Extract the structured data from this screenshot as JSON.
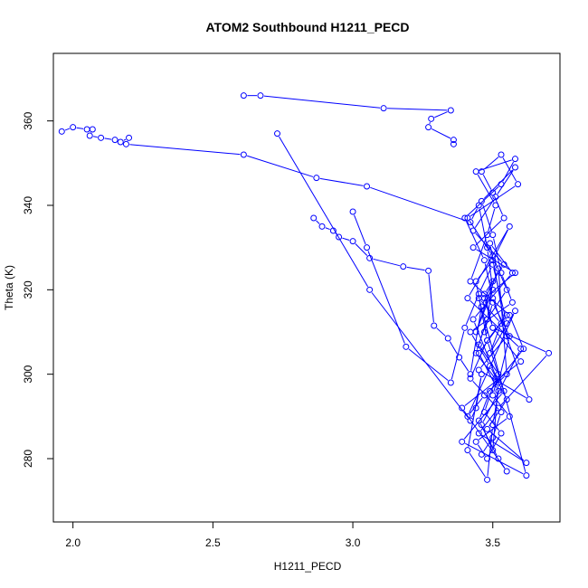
{
  "chart_data": {
    "type": "line",
    "title": "ATOM2 Southbound H1211_PECD",
    "xlabel": "H1211_PECD",
    "ylabel": "Theta (K)",
    "xlim": [
      1.93,
      3.74
    ],
    "ylim": [
      265,
      376
    ],
    "xticks": [
      2.0,
      2.5,
      3.0,
      3.5
    ],
    "xtick_labels": [
      "2.0",
      "2.5",
      "3.0",
      "3.5"
    ],
    "yticks": [
      280,
      300,
      320,
      340,
      360
    ],
    "ytick_labels": [
      "280",
      "300",
      "320",
      "340",
      "360"
    ],
    "grid": false,
    "legend": "none",
    "color": "#0000ff",
    "marker": "open-circle",
    "series": [
      {
        "x": [
          1.96,
          2.0,
          2.05,
          2.07,
          2.06,
          2.1,
          2.15,
          2.17,
          2.2,
          2.19,
          2.61,
          2.87,
          3.05,
          3.42,
          3.45,
          3.48,
          3.5,
          3.44,
          3.52,
          3.55,
          3.47,
          3.41,
          3.58,
          3.49,
          3.53,
          3.45,
          3.62,
          3.39,
          3.54,
          3.48,
          3.44,
          3.5,
          3.56,
          3.41,
          3.6,
          3.46,
          3.5,
          3.52,
          3.43,
          3.57,
          3.49,
          3.55,
          3.45,
          3.63,
          3.5,
          3.47,
          3.4,
          3.53,
          3.58,
          3.44,
          3.51,
          3.48,
          3.42,
          3.56,
          3.61,
          3.49,
          3.45,
          3.52,
          3.55,
          3.39,
          3.6,
          3.5,
          3.47,
          3.54,
          3.43,
          3.51,
          3.58,
          3.46,
          3.5,
          3.53,
          3.57,
          3.42,
          3.49,
          3.55,
          3.48,
          3.62,
          3.45,
          3.52,
          3.7,
          3.5,
          3.47,
          3.58,
          3.43,
          3.54,
          3.5,
          3.46,
          3.53,
          3.59,
          3.41,
          3.5,
          3.55,
          3.48,
          3.45,
          3.52,
          3.5,
          3.56,
          3.44,
          3.48,
          3.53,
          3.47,
          3.51
        ],
        "y": [
          357.5,
          358.5,
          358,
          358,
          356.5,
          356,
          355.5,
          355,
          356,
          354.5,
          352,
          346.5,
          344.5,
          336,
          340,
          330,
          320,
          310,
          325,
          300,
          295,
          290,
          315,
          305,
          312,
          318,
          276,
          284,
          296,
          308,
          322,
          327,
          335,
          318,
          306,
          288,
          282,
          298,
          313,
          324,
          331,
          309,
          301,
          294,
          318,
          327,
          337,
          345,
          351,
          348,
          340,
          333,
          322,
          314,
          306,
          296,
          289,
          280,
          277,
          292,
          303,
          311,
          319,
          326,
          334,
          342,
          349,
          341,
          333,
          324,
          317,
          310,
          302,
          294,
          287,
          279,
          286,
          292,
          305,
          311,
          318,
          324,
          330,
          337,
          343,
          348,
          352,
          345,
          337,
          328,
          320,
          313,
          307,
          300,
          295,
          290,
          284,
          280,
          286,
          291,
          299
        ]
      },
      {
        "x": [
          2.61,
          2.67,
          3.11,
          3.35,
          3.28,
          3.27,
          3.36,
          3.36
        ],
        "y": [
          366,
          366,
          363,
          362.5,
          360.5,
          358.5,
          355.5,
          354.5
        ]
      },
      {
        "x": [
          2.73,
          3.06,
          3.42,
          3.44,
          3.46,
          3.41,
          3.48,
          3.5,
          3.52,
          3.45,
          3.55,
          3.48,
          3.42,
          3.53,
          3.5,
          3.46
        ],
        "y": [
          357,
          320,
          289,
          292,
          300,
          282,
          275,
          288,
          296,
          305,
          314,
          308,
          299,
          291,
          285,
          281
        ]
      },
      {
        "x": [
          2.86,
          2.89,
          2.93,
          2.95,
          3.0,
          3.06,
          3.18,
          3.27,
          3.29,
          3.34,
          3.38,
          3.42,
          3.46,
          3.5,
          3.48,
          3.44,
          3.52,
          3.56,
          3.5,
          3.47
        ],
        "y": [
          337,
          335,
          334,
          332.5,
          331.5,
          327.5,
          325.5,
          324.5,
          311.5,
          308.5,
          304,
          300,
          316,
          322,
          313,
          305,
          298,
          309,
          317,
          310
        ]
      },
      {
        "x": [
          3.0,
          3.05,
          3.19,
          3.35,
          3.4,
          3.45,
          3.5,
          3.55
        ],
        "y": [
          338.5,
          330,
          306.5,
          298,
          311,
          319,
          326,
          312
        ]
      }
    ]
  }
}
